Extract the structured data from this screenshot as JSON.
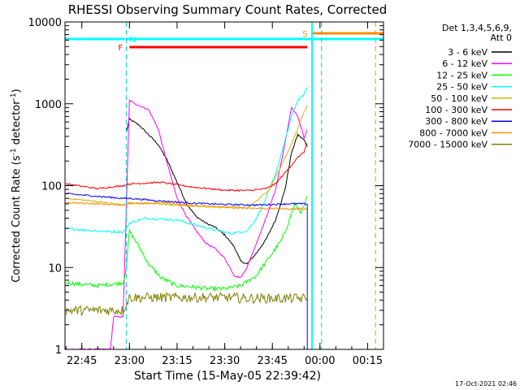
{
  "chart_data": {
    "type": "line",
    "title": "RHESSI Observing Summary Count Rates, Corrected",
    "xlabel": "Start Time (15-May-05 22:39:42)",
    "ylabel_parts": [
      "Corrected Count Rate (s",
      "-1",
      " detector",
      "-1",
      ")"
    ],
    "y_scale": "log",
    "ylim": [
      1,
      10000
    ],
    "xlim": [
      "22:39:42",
      "00:20:00"
    ],
    "x_ticks": [
      "22:45",
      "23:00",
      "23:15",
      "23:30",
      "23:45",
      "00:00",
      "00:15"
    ],
    "y_ticks": [
      "1",
      "10",
      "100",
      "1000",
      "10000"
    ],
    "legend_title": [
      "Det 1,3,4,5,6,9,",
      "Att 0"
    ],
    "legend_placement": "right",
    "timestamp": "17-Oct-2021 02:46",
    "series": [
      {
        "name": "3 - 6 keV",
        "color": "#000000",
        "x": [
          "22:59:00",
          "23:00:00",
          "23:03:00",
          "23:06:00",
          "23:09:00",
          "23:12:00",
          "23:15:00",
          "23:18:00",
          "23:21:00",
          "23:24:00",
          "23:27:00",
          "23:30:00",
          "23:33:00",
          "23:35:00",
          "23:37:00",
          "23:40:00",
          "23:43:00",
          "23:46:00",
          "23:49:00",
          "23:51:00",
          "23:53:00",
          "23:55:00",
          "23:56:00"
        ],
        "values": [
          450,
          650,
          550,
          420,
          320,
          200,
          110,
          60,
          42,
          35,
          31,
          25,
          18,
          12,
          11,
          15,
          22,
          38,
          90,
          250,
          420,
          360,
          300
        ]
      },
      {
        "name": "6 - 12 keV",
        "color": "#ff00ff",
        "x": [
          "22:40:00",
          "22:54:00",
          "22:55:00",
          "22:58:00",
          "22:59:00",
          "23:00:00",
          "23:03:00",
          "23:06:00",
          "23:09:00",
          "23:12:00",
          "23:15:00",
          "23:18:00",
          "23:21:00",
          "23:24:00",
          "23:27:00",
          "23:30:00",
          "23:33:00",
          "23:35:00",
          "23:37:00",
          "23:40:00",
          "23:43:00",
          "23:46:00",
          "23:49:00",
          "23:51:00",
          "23:53:00",
          "23:55:00",
          "23:56:00"
        ],
        "values": [
          1,
          1,
          2.5,
          2.5,
          50,
          1100,
          950,
          850,
          500,
          180,
          70,
          42,
          28,
          20,
          17,
          13,
          8,
          7.5,
          10,
          20,
          40,
          90,
          330,
          900,
          700,
          380,
          480
        ]
      },
      {
        "name": "12 - 25 keV",
        "color": "#00ff00",
        "x": [
          "22:40:00",
          "22:50:00",
          "22:58:00",
          "22:59:00",
          "23:00:00",
          "23:03:00",
          "23:06:00",
          "23:10:00",
          "23:15:00",
          "23:20:00",
          "23:25:00",
          "23:30:00",
          "23:35:00",
          "23:40:00",
          "23:45:00",
          "23:48:00",
          "23:50:00",
          "23:52:00",
          "23:54:00",
          "23:55:00",
          "23:56:00"
        ],
        "values": [
          6.5,
          6,
          6.5,
          10,
          28,
          18,
          11,
          7.5,
          6,
          5.8,
          5.5,
          5.5,
          6,
          8,
          15,
          22,
          35,
          60,
          48,
          55,
          75
        ]
      },
      {
        "name": "25 - 50 keV",
        "color": "#00ffff",
        "x": [
          "22:40:00",
          "22:50:00",
          "22:58:00",
          "23:00:00",
          "23:05:00",
          "23:15:00",
          "23:25:00",
          "23:32:00",
          "23:37:00",
          "23:40:00",
          "23:43:00",
          "23:46:00",
          "23:49:00",
          "23:51:00",
          "23:53:00",
          "23:55:00",
          "23:56:00"
        ],
        "values": [
          30,
          28,
          27,
          35,
          40,
          38,
          30,
          26,
          28,
          40,
          70,
          140,
          350,
          700,
          1100,
          1300,
          1600
        ]
      },
      {
        "name": "50 - 100 keV",
        "color": "#d2b400",
        "x": [
          "22:40:00",
          "22:50:00",
          "22:58:00",
          "23:00:00",
          "23:10:00",
          "23:20:00",
          "23:30:00",
          "23:37:00",
          "23:40:00",
          "23:44:00",
          "23:48:00",
          "23:51:00",
          "23:53:00",
          "23:55:00",
          "23:56:00"
        ],
        "values": [
          70,
          64,
          58,
          62,
          60,
          56,
          54,
          53,
          65,
          90,
          180,
          320,
          500,
          800,
          950
        ]
      },
      {
        "name": "100 - 300 keV",
        "color": "#ff0000",
        "x": [
          "22:40:00",
          "22:50:00",
          "22:58:00",
          "23:00:00",
          "23:10:00",
          "23:20:00",
          "23:30:00",
          "23:37:00",
          "23:43:00",
          "23:46:00",
          "23:50:00",
          "23:53:00",
          "23:55:00",
          "23:56:00"
        ],
        "values": [
          105,
          92,
          100,
          105,
          110,
          96,
          88,
          87,
          92,
          105,
          160,
          220,
          260,
          330
        ]
      },
      {
        "name": "300 - 800 keV",
        "color": "#0000ff",
        "x": [
          "22:40:00",
          "22:50:00",
          "22:58:00",
          "23:00:00",
          "23:10:00",
          "23:20:00",
          "23:30:00",
          "23:40:00",
          "23:50:00",
          "23:56:00"
        ],
        "values": [
          80,
          74,
          70,
          70,
          65,
          61,
          59,
          58,
          60,
          60
        ]
      },
      {
        "name": "800 - 7000 keV",
        "color": "#ff8c00",
        "x": [
          "22:40:00",
          "22:50:00",
          "22:58:00",
          "23:00:00",
          "23:10:00",
          "23:20:00",
          "23:30:00",
          "23:40:00",
          "23:50:00",
          "23:56:00"
        ],
        "values": [
          62,
          60,
          58,
          60,
          62,
          57,
          55,
          53,
          52,
          52
        ]
      },
      {
        "name": "7000 - 15000 keV",
        "color": "#808000",
        "x": [
          "22:40:00",
          "22:58:00",
          "23:00:00",
          "23:33:00",
          "23:35:00",
          "23:55:00",
          "23:56:00"
        ],
        "values": [
          3,
          3,
          4.3,
          4.3,
          4.2,
          4.2,
          4.2
        ]
      }
    ],
    "flags": [
      {
        "label": "N",
        "color": "#00ffff",
        "start": "22:59:00",
        "end": "00:20:00"
      },
      {
        "label": "F",
        "color": "#ff0000",
        "start": "23:00:00",
        "end": "23:56:00"
      },
      {
        "label": "S",
        "color": "#ff8c00",
        "start": "23:57:30",
        "end": "00:20:00"
      }
    ],
    "grid": false
  }
}
